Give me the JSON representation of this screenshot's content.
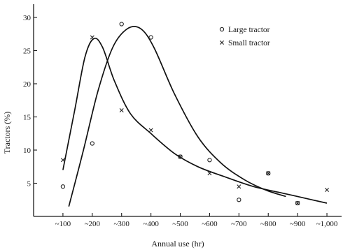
{
  "chart_data": {
    "type": "scatter",
    "title": "",
    "xlabel": "Annual use (hr)",
    "ylabel": "Tractors (%)",
    "x_ticks": [
      {
        "value": 100,
        "label": "~100"
      },
      {
        "value": 200,
        "label": "~200"
      },
      {
        "value": 300,
        "label": "~300"
      },
      {
        "value": 400,
        "label": "~400"
      },
      {
        "value": 500,
        "label": "~500"
      },
      {
        "value": 600,
        "label": "~600"
      },
      {
        "value": 700,
        "label": "~700"
      },
      {
        "value": 800,
        "label": "~800"
      },
      {
        "value": 900,
        "label": "~900"
      },
      {
        "value": 1000,
        "label": "~1,000"
      }
    ],
    "y_ticks": [
      {
        "value": 5,
        "label": "5"
      },
      {
        "value": 10,
        "label": "10"
      },
      {
        "value": 15,
        "label": "15"
      },
      {
        "value": 20,
        "label": "20"
      },
      {
        "value": 25,
        "label": "25"
      },
      {
        "value": 30,
        "label": "30"
      }
    ],
    "xlim": [
      0,
      1050
    ],
    "ylim": [
      0,
      32
    ],
    "grid": false,
    "legend_position": "top-right",
    "series": [
      {
        "name": "Large tractor",
        "legend_label": "○ Large tractor",
        "marker": "circle",
        "points": [
          {
            "x": 100,
            "y": 4.5
          },
          {
            "x": 200,
            "y": 11
          },
          {
            "x": 300,
            "y": 29
          },
          {
            "x": 400,
            "y": 27
          },
          {
            "x": 500,
            "y": 9
          },
          {
            "x": 600,
            "y": 8.5
          },
          {
            "x": 700,
            "y": 2.5
          },
          {
            "x": 800,
            "y": 6.5
          },
          {
            "x": 900,
            "y": 2
          }
        ],
        "trend": [
          {
            "x": 120,
            "y": 1.5
          },
          {
            "x": 170,
            "y": 10
          },
          {
            "x": 220,
            "y": 19
          },
          {
            "x": 270,
            "y": 25.5
          },
          {
            "x": 320,
            "y": 28.3
          },
          {
            "x": 365,
            "y": 28.3
          },
          {
            "x": 410,
            "y": 25.5
          },
          {
            "x": 480,
            "y": 18.5
          },
          {
            "x": 560,
            "y": 12
          },
          {
            "x": 640,
            "y": 8
          },
          {
            "x": 720,
            "y": 5.5
          },
          {
            "x": 790,
            "y": 4
          },
          {
            "x": 860,
            "y": 3
          }
        ]
      },
      {
        "name": "Small tractor",
        "legend_label": "× Small tractor",
        "marker": "cross",
        "points": [
          {
            "x": 100,
            "y": 8.5
          },
          {
            "x": 200,
            "y": 27
          },
          {
            "x": 300,
            "y": 16
          },
          {
            "x": 400,
            "y": 13
          },
          {
            "x": 500,
            "y": 9
          },
          {
            "x": 600,
            "y": 6.5
          },
          {
            "x": 700,
            "y": 4.5
          },
          {
            "x": 800,
            "y": 6.5
          },
          {
            "x": 900,
            "y": 2
          },
          {
            "x": 1000,
            "y": 4
          }
        ],
        "trend": [
          {
            "x": 100,
            "y": 7
          },
          {
            "x": 140,
            "y": 16
          },
          {
            "x": 175,
            "y": 24
          },
          {
            "x": 205,
            "y": 26.8
          },
          {
            "x": 235,
            "y": 25.5
          },
          {
            "x": 275,
            "y": 20.5
          },
          {
            "x": 330,
            "y": 15.5
          },
          {
            "x": 400,
            "y": 12.5
          },
          {
            "x": 480,
            "y": 9.5
          },
          {
            "x": 560,
            "y": 7.5
          },
          {
            "x": 650,
            "y": 6
          },
          {
            "x": 750,
            "y": 4.5
          },
          {
            "x": 850,
            "y": 3.5
          },
          {
            "x": 950,
            "y": 2.5
          },
          {
            "x": 1000,
            "y": 2
          }
        ]
      }
    ]
  }
}
